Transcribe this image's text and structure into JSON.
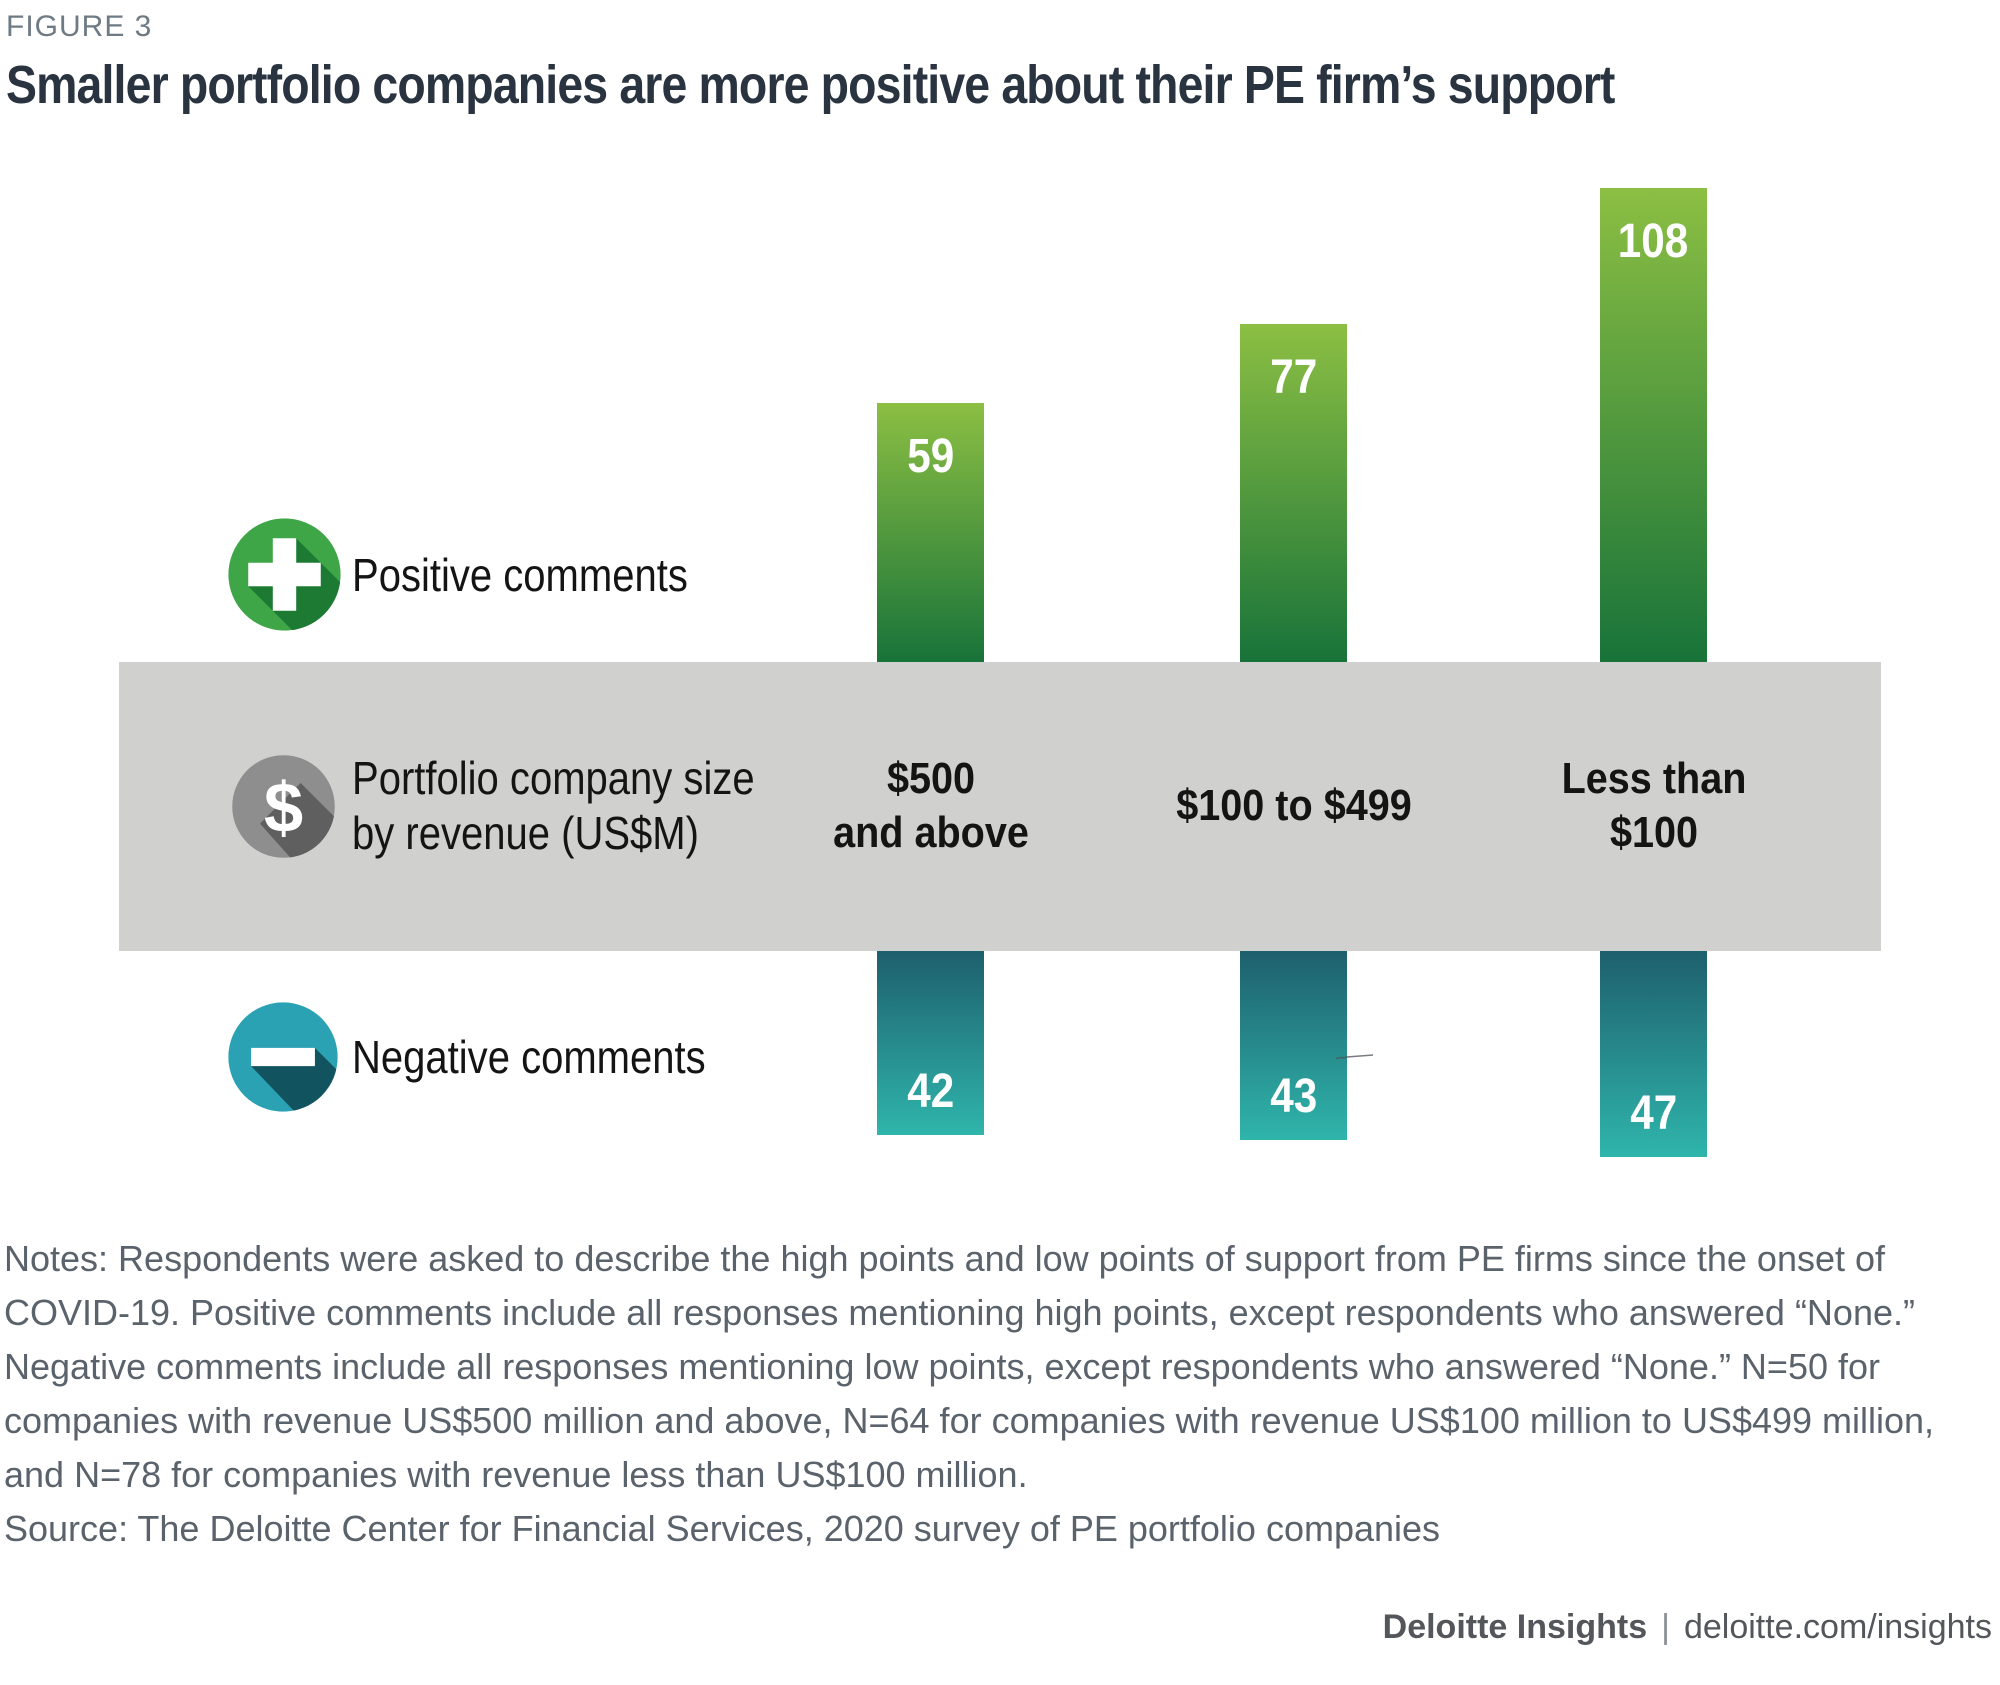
{
  "figure_label": "FIGURE 3",
  "title": "Smaller portfolio companies are more positive about their PE firm’s support",
  "legend": {
    "positive": "Positive comments",
    "center": "Portfolio company size\nby revenue (US$M)",
    "negative": "Negative comments"
  },
  "chart_data": {
    "type": "bar",
    "orientation": "diverging-vertical",
    "categories": [
      "$500\nand above",
      "$100 to $499",
      "Less than\n$100"
    ],
    "series": [
      {
        "name": "Positive comments",
        "values": [
          59,
          77,
          108
        ],
        "color_top": "#8cbf43",
        "color_bottom": "#187339"
      },
      {
        "name": "Negative comments",
        "values": [
          42,
          43,
          47
        ],
        "color_top": "#1e5f6d",
        "color_bottom": "#2fb5ab"
      }
    ],
    "band_label": "Portfolio company size by revenue (US$M)",
    "value_labels_shown": true,
    "axis_shown": false,
    "legend_position": "left"
  },
  "notes_lines": [
    "Notes: Respondents were asked to describe the high points and low points of support from PE firms since the onset of",
    "COVID-19. Positive comments include all responses mentioning high points, except respondents who answered “None.”",
    "Negative comments include all responses mentioning low points, except respondents who answered “None.” N=50 for",
    "companies with revenue US$500 million and above, N=64 for companies with revenue US$100 million to US$499 million,",
    "and N=78 for companies with revenue less than US$100 million.",
    "Source: The Deloitte Center for Financial Services, 2020 survey of PE portfolio companies"
  ],
  "footer": {
    "brand": "Deloitte Insights",
    "separator": "|",
    "url": "deloitte.com/insights"
  },
  "colors": {
    "band_gray": "#d0d0ce",
    "title": "#2a3441",
    "figure_label": "#6e7a84",
    "notes": "#5a626b",
    "footer": "#53565a",
    "positive_icon_circle": "#3ea647",
    "positive_icon_shadow": "#1d7a33",
    "negative_icon_circle": "#2aa2b4",
    "negative_icon_shadow": "#115460",
    "dollar_icon_circle": "#8e8e8e",
    "dollar_icon_shadow": "#5f5f5f",
    "value_label": "#ffffff"
  }
}
